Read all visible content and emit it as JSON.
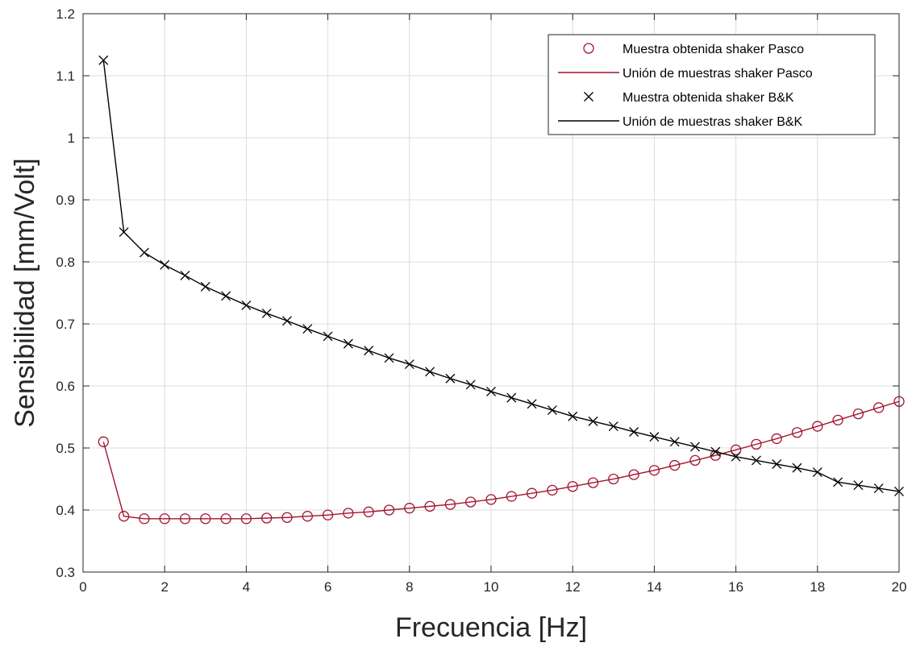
{
  "chart_data": {
    "type": "line",
    "title": "",
    "xlabel": "Frecuencia [Hz]",
    "ylabel": "Sensibilidad [mm/Volt]",
    "xlim": [
      0,
      20
    ],
    "ylim": [
      0.3,
      1.2
    ],
    "xticks": [
      0,
      2,
      4,
      6,
      8,
      10,
      12,
      14,
      16,
      18,
      20
    ],
    "yticks": [
      0.3,
      0.4,
      0.5,
      0.6,
      0.7,
      0.8,
      0.9,
      1,
      1.1,
      1.2
    ],
    "xtick_labels": [
      "0",
      "2",
      "4",
      "6",
      "8",
      "10",
      "12",
      "14",
      "16",
      "18",
      "20"
    ],
    "ytick_labels": [
      "0.3",
      "0.4",
      "0.5",
      "0.6",
      "0.7",
      "0.8",
      "0.9",
      "1",
      "1.1",
      "1.2"
    ],
    "grid": true,
    "legend_position": "top-right",
    "x": [
      0.5,
      1,
      1.5,
      2,
      2.5,
      3,
      3.5,
      4,
      4.5,
      5,
      5.5,
      6,
      6.5,
      7,
      7.5,
      8,
      8.5,
      9,
      9.5,
      10,
      10.5,
      11,
      11.5,
      12,
      12.5,
      13,
      13.5,
      14,
      14.5,
      15,
      15.5,
      16,
      16.5,
      17,
      17.5,
      18,
      18.5,
      19,
      19.5,
      20
    ],
    "series": [
      {
        "name": "Muestra obtenida shaker Pasco",
        "line_name": "Unión de muestras shaker Pasco",
        "color": "#a2142f",
        "marker": "circle",
        "values": [
          0.51,
          0.39,
          0.386,
          0.386,
          0.386,
          0.386,
          0.386,
          0.386,
          0.387,
          0.388,
          0.39,
          0.392,
          0.395,
          0.397,
          0.4,
          0.403,
          0.406,
          0.409,
          0.413,
          0.417,
          0.422,
          0.427,
          0.432,
          0.438,
          0.444,
          0.45,
          0.457,
          0.464,
          0.472,
          0.48,
          0.488,
          0.497,
          0.506,
          0.515,
          0.525,
          0.535,
          0.545,
          0.555,
          0.565,
          0.575
        ]
      },
      {
        "name": "Muestra obtenida shaker B&K",
        "line_name": "Unión de muestras shaker B&K",
        "color": "#000000",
        "marker": "x",
        "values": [
          1.125,
          0.848,
          0.815,
          0.795,
          0.778,
          0.76,
          0.745,
          0.73,
          0.717,
          0.705,
          0.692,
          0.68,
          0.668,
          0.657,
          0.645,
          0.635,
          0.623,
          0.612,
          0.602,
          0.591,
          0.581,
          0.571,
          0.561,
          0.551,
          0.543,
          0.535,
          0.526,
          0.518,
          0.51,
          0.502,
          0.494,
          0.486,
          0.48,
          0.474,
          0.468,
          0.461,
          0.445,
          0.44,
          0.435,
          0.43
        ]
      }
    ]
  }
}
